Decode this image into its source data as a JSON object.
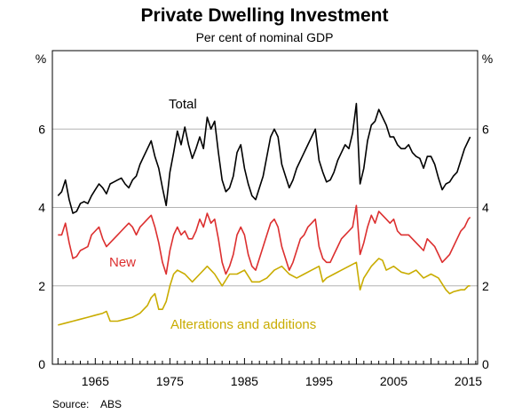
{
  "chart_data": {
    "type": "line",
    "title": "Private Dwelling Investment",
    "subtitle": "Per cent of nominal GDP",
    "ylabel_left": "%",
    "ylabel_right": "%",
    "xlabel": "",
    "xlim": [
      1959.25,
      2016.25
    ],
    "ylim": [
      0,
      8
    ],
    "yticks": [
      0,
      2,
      4,
      6
    ],
    "ytick_labels": [
      "0",
      "2",
      "4",
      "6"
    ],
    "xticks": [
      1965,
      1975,
      1985,
      1995,
      2005,
      2015
    ],
    "xtick_labels": [
      "1965",
      "1975",
      "1985",
      "1995",
      "2005",
      "2015"
    ],
    "grid": true,
    "source": "Source:    ABS",
    "series": [
      {
        "name": "Total",
        "color": "#000000",
        "x": [
          1960.0,
          1960.5,
          1961.0,
          1961.5,
          1962.0,
          1962.5,
          1963.0,
          1963.5,
          1964.0,
          1964.5,
          1965.0,
          1965.5,
          1966.0,
          1966.5,
          1967.0,
          1967.5,
          1968.0,
          1968.5,
          1969.0,
          1969.5,
          1970.0,
          1970.5,
          1971.0,
          1971.5,
          1972.0,
          1972.5,
          1973.0,
          1973.5,
          1974.0,
          1974.5,
          1975.0,
          1975.5,
          1976.0,
          1976.5,
          1977.0,
          1977.5,
          1978.0,
          1978.5,
          1979.0,
          1979.5,
          1980.0,
          1980.5,
          1981.0,
          1981.5,
          1982.0,
          1982.5,
          1983.0,
          1983.5,
          1984.0,
          1984.5,
          1985.0,
          1985.5,
          1986.0,
          1986.5,
          1987.0,
          1987.5,
          1988.0,
          1988.5,
          1989.0,
          1989.5,
          1990.0,
          1990.5,
          1991.0,
          1991.5,
          1992.0,
          1992.5,
          1993.0,
          1993.5,
          1994.0,
          1994.5,
          1995.0,
          1995.5,
          1996.0,
          1996.5,
          1997.0,
          1997.5,
          1998.0,
          1998.5,
          1999.0,
          1999.5,
          2000.0,
          2000.5,
          2001.0,
          2001.5,
          2002.0,
          2002.5,
          2003.0,
          2003.5,
          2004.0,
          2004.5,
          2005.0,
          2005.5,
          2006.0,
          2006.5,
          2007.0,
          2007.5,
          2008.0,
          2008.5,
          2009.0,
          2009.5,
          2010.0,
          2010.5,
          2011.0,
          2011.5,
          2012.0,
          2012.5,
          2013.0,
          2013.5,
          2014.0,
          2014.5,
          2015.0,
          2015.25
        ],
        "y": [
          4.3,
          4.4,
          4.7,
          4.2,
          3.85,
          3.9,
          4.1,
          4.15,
          4.1,
          4.3,
          4.45,
          4.6,
          4.5,
          4.35,
          4.6,
          4.65,
          4.7,
          4.75,
          4.6,
          4.5,
          4.7,
          4.8,
          5.1,
          5.3,
          5.5,
          5.7,
          5.3,
          5.0,
          4.5,
          4.05,
          4.9,
          5.4,
          5.95,
          5.6,
          6.05,
          5.6,
          5.25,
          5.5,
          5.8,
          5.5,
          6.3,
          6.0,
          6.2,
          5.4,
          4.7,
          4.4,
          4.5,
          4.8,
          5.4,
          5.6,
          5.0,
          4.6,
          4.3,
          4.2,
          4.5,
          4.8,
          5.3,
          5.8,
          6.0,
          5.8,
          5.1,
          4.8,
          4.5,
          4.7,
          5.0,
          5.2,
          5.4,
          5.6,
          5.8,
          6.0,
          5.2,
          4.9,
          4.65,
          4.7,
          4.9,
          5.2,
          5.4,
          5.6,
          5.5,
          5.9,
          6.65,
          4.6,
          5.0,
          5.7,
          6.1,
          6.2,
          6.5,
          6.3,
          6.1,
          5.8,
          5.8,
          5.6,
          5.5,
          5.5,
          5.6,
          5.4,
          5.3,
          5.25,
          5.0,
          5.3,
          5.3,
          5.1,
          4.75,
          4.45,
          4.6,
          4.65,
          4.8,
          4.9,
          5.2,
          5.5,
          5.7,
          5.8
        ]
      },
      {
        "name": "New",
        "color": "#dc2f2f",
        "x": [
          1960.0,
          1960.5,
          1961.0,
          1961.5,
          1962.0,
          1962.5,
          1963.0,
          1963.5,
          1964.0,
          1964.5,
          1965.0,
          1965.5,
          1966.0,
          1966.5,
          1967.0,
          1967.5,
          1968.0,
          1968.5,
          1969.0,
          1969.5,
          1970.0,
          1970.5,
          1971.0,
          1971.5,
          1972.0,
          1972.5,
          1973.0,
          1973.5,
          1974.0,
          1974.5,
          1975.0,
          1975.5,
          1976.0,
          1976.5,
          1977.0,
          1977.5,
          1978.0,
          1978.5,
          1979.0,
          1979.5,
          1980.0,
          1980.5,
          1981.0,
          1981.5,
          1982.0,
          1982.5,
          1983.0,
          1983.5,
          1984.0,
          1984.5,
          1985.0,
          1985.5,
          1986.0,
          1986.5,
          1987.0,
          1987.5,
          1988.0,
          1988.5,
          1989.0,
          1989.5,
          1990.0,
          1990.5,
          1991.0,
          1991.5,
          1992.0,
          1992.5,
          1993.0,
          1993.5,
          1994.0,
          1994.5,
          1995.0,
          1995.5,
          1996.0,
          1996.5,
          1997.0,
          1997.5,
          1998.0,
          1998.5,
          1999.0,
          1999.5,
          2000.0,
          2000.5,
          2001.0,
          2001.5,
          2002.0,
          2002.5,
          2003.0,
          2003.5,
          2004.0,
          2004.5,
          2005.0,
          2005.5,
          2006.0,
          2006.5,
          2007.0,
          2007.5,
          2008.0,
          2008.5,
          2009.0,
          2009.5,
          2010.0,
          2010.5,
          2011.0,
          2011.5,
          2012.0,
          2012.5,
          2013.0,
          2013.5,
          2014.0,
          2014.5,
          2015.0,
          2015.25
        ],
        "y": [
          3.3,
          3.3,
          3.6,
          3.1,
          2.7,
          2.75,
          2.9,
          2.95,
          3.0,
          3.3,
          3.4,
          3.5,
          3.2,
          3.0,
          3.1,
          3.2,
          3.3,
          3.4,
          3.5,
          3.6,
          3.5,
          3.3,
          3.5,
          3.6,
          3.7,
          3.8,
          3.5,
          3.1,
          2.6,
          2.3,
          2.9,
          3.3,
          3.5,
          3.3,
          3.4,
          3.2,
          3.2,
          3.4,
          3.7,
          3.5,
          3.85,
          3.6,
          3.7,
          3.2,
          2.6,
          2.3,
          2.5,
          2.8,
          3.3,
          3.5,
          3.3,
          2.8,
          2.5,
          2.4,
          2.7,
          3.0,
          3.3,
          3.6,
          3.7,
          3.5,
          3.0,
          2.7,
          2.4,
          2.6,
          2.9,
          3.2,
          3.3,
          3.5,
          3.6,
          3.7,
          3.0,
          2.7,
          2.6,
          2.6,
          2.8,
          3.0,
          3.2,
          3.3,
          3.4,
          3.5,
          4.05,
          2.8,
          3.1,
          3.5,
          3.8,
          3.6,
          3.9,
          3.8,
          3.7,
          3.6,
          3.7,
          3.4,
          3.3,
          3.3,
          3.3,
          3.2,
          3.1,
          3.0,
          2.9,
          3.2,
          3.1,
          3.0,
          2.8,
          2.6,
          2.7,
          2.8,
          3.0,
          3.2,
          3.4,
          3.5,
          3.7,
          3.75
        ]
      },
      {
        "name": "Alterations and additions",
        "color": "#c9ac00",
        "x": [
          1960.0,
          1961.0,
          1962.0,
          1963.0,
          1964.0,
          1965.0,
          1966.0,
          1966.5,
          1967.0,
          1968.0,
          1969.0,
          1970.0,
          1971.0,
          1972.0,
          1972.5,
          1973.0,
          1973.5,
          1974.0,
          1974.5,
          1975.0,
          1975.5,
          1976.0,
          1977.0,
          1978.0,
          1979.0,
          1980.0,
          1980.5,
          1981.0,
          1982.0,
          1983.0,
          1984.0,
          1985.0,
          1986.0,
          1987.0,
          1988.0,
          1989.0,
          1990.0,
          1991.0,
          1992.0,
          1993.0,
          1994.0,
          1995.0,
          1995.5,
          1996.0,
          1997.0,
          1998.0,
          1999.0,
          2000.0,
          2000.5,
          2001.0,
          2002.0,
          2003.0,
          2003.5,
          2004.0,
          2005.0,
          2006.0,
          2007.0,
          2008.0,
          2009.0,
          2010.0,
          2011.0,
          2012.0,
          2012.5,
          2013.0,
          2014.0,
          2014.5,
          2015.0,
          2015.25
        ],
        "y": [
          1.0,
          1.05,
          1.1,
          1.15,
          1.2,
          1.25,
          1.3,
          1.35,
          1.1,
          1.1,
          1.15,
          1.2,
          1.3,
          1.5,
          1.7,
          1.8,
          1.4,
          1.4,
          1.6,
          2.0,
          2.3,
          2.4,
          2.3,
          2.1,
          2.3,
          2.5,
          2.4,
          2.3,
          2.0,
          2.3,
          2.3,
          2.4,
          2.1,
          2.1,
          2.2,
          2.4,
          2.5,
          2.3,
          2.2,
          2.3,
          2.4,
          2.5,
          2.1,
          2.2,
          2.3,
          2.4,
          2.5,
          2.6,
          1.9,
          2.2,
          2.5,
          2.7,
          2.65,
          2.4,
          2.5,
          2.35,
          2.3,
          2.4,
          2.2,
          2.3,
          2.2,
          1.9,
          1.8,
          1.85,
          1.9,
          1.9,
          2.0,
          2.0
        ]
      }
    ],
    "annotations": [
      {
        "text": "Total",
        "color": "#000000"
      },
      {
        "text": "New",
        "color": "#dc2f2f"
      },
      {
        "text": "Alterations and additions",
        "color": "#c9ac00"
      }
    ]
  }
}
